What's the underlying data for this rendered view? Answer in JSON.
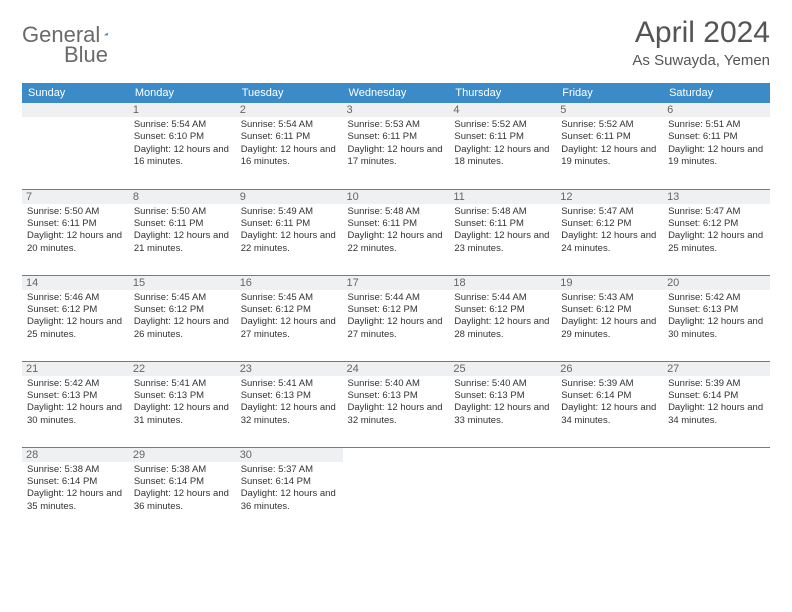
{
  "logo": {
    "text1": "General",
    "text2": "Blue",
    "shape_color": "#2a7bbf"
  },
  "header": {
    "title": "April 2024",
    "subtitle": "As Suwayda, Yemen"
  },
  "colors": {
    "header_bg": "#3b8bc9",
    "header_text": "#ffffff",
    "daynum_bg": "#eef0f2",
    "cell_border": "#3b8bc9",
    "body_text": "#333333"
  },
  "weekdays": [
    "Sunday",
    "Monday",
    "Tuesday",
    "Wednesday",
    "Thursday",
    "Friday",
    "Saturday"
  ],
  "start_offset": 1,
  "days": [
    {
      "n": 1,
      "sr": "5:54 AM",
      "ss": "6:10 PM",
      "dl": "12 hours and 16 minutes."
    },
    {
      "n": 2,
      "sr": "5:54 AM",
      "ss": "6:11 PM",
      "dl": "12 hours and 16 minutes."
    },
    {
      "n": 3,
      "sr": "5:53 AM",
      "ss": "6:11 PM",
      "dl": "12 hours and 17 minutes."
    },
    {
      "n": 4,
      "sr": "5:52 AM",
      "ss": "6:11 PM",
      "dl": "12 hours and 18 minutes."
    },
    {
      "n": 5,
      "sr": "5:52 AM",
      "ss": "6:11 PM",
      "dl": "12 hours and 19 minutes."
    },
    {
      "n": 6,
      "sr": "5:51 AM",
      "ss": "6:11 PM",
      "dl": "12 hours and 19 minutes."
    },
    {
      "n": 7,
      "sr": "5:50 AM",
      "ss": "6:11 PM",
      "dl": "12 hours and 20 minutes."
    },
    {
      "n": 8,
      "sr": "5:50 AM",
      "ss": "6:11 PM",
      "dl": "12 hours and 21 minutes."
    },
    {
      "n": 9,
      "sr": "5:49 AM",
      "ss": "6:11 PM",
      "dl": "12 hours and 22 minutes."
    },
    {
      "n": 10,
      "sr": "5:48 AM",
      "ss": "6:11 PM",
      "dl": "12 hours and 22 minutes."
    },
    {
      "n": 11,
      "sr": "5:48 AM",
      "ss": "6:11 PM",
      "dl": "12 hours and 23 minutes."
    },
    {
      "n": 12,
      "sr": "5:47 AM",
      "ss": "6:12 PM",
      "dl": "12 hours and 24 minutes."
    },
    {
      "n": 13,
      "sr": "5:47 AM",
      "ss": "6:12 PM",
      "dl": "12 hours and 25 minutes."
    },
    {
      "n": 14,
      "sr": "5:46 AM",
      "ss": "6:12 PM",
      "dl": "12 hours and 25 minutes."
    },
    {
      "n": 15,
      "sr": "5:45 AM",
      "ss": "6:12 PM",
      "dl": "12 hours and 26 minutes."
    },
    {
      "n": 16,
      "sr": "5:45 AM",
      "ss": "6:12 PM",
      "dl": "12 hours and 27 minutes."
    },
    {
      "n": 17,
      "sr": "5:44 AM",
      "ss": "6:12 PM",
      "dl": "12 hours and 27 minutes."
    },
    {
      "n": 18,
      "sr": "5:44 AM",
      "ss": "6:12 PM",
      "dl": "12 hours and 28 minutes."
    },
    {
      "n": 19,
      "sr": "5:43 AM",
      "ss": "6:12 PM",
      "dl": "12 hours and 29 minutes."
    },
    {
      "n": 20,
      "sr": "5:42 AM",
      "ss": "6:13 PM",
      "dl": "12 hours and 30 minutes."
    },
    {
      "n": 21,
      "sr": "5:42 AM",
      "ss": "6:13 PM",
      "dl": "12 hours and 30 minutes."
    },
    {
      "n": 22,
      "sr": "5:41 AM",
      "ss": "6:13 PM",
      "dl": "12 hours and 31 minutes."
    },
    {
      "n": 23,
      "sr": "5:41 AM",
      "ss": "6:13 PM",
      "dl": "12 hours and 32 minutes."
    },
    {
      "n": 24,
      "sr": "5:40 AM",
      "ss": "6:13 PM",
      "dl": "12 hours and 32 minutes."
    },
    {
      "n": 25,
      "sr": "5:40 AM",
      "ss": "6:13 PM",
      "dl": "12 hours and 33 minutes."
    },
    {
      "n": 26,
      "sr": "5:39 AM",
      "ss": "6:14 PM",
      "dl": "12 hours and 34 minutes."
    },
    {
      "n": 27,
      "sr": "5:39 AM",
      "ss": "6:14 PM",
      "dl": "12 hours and 34 minutes."
    },
    {
      "n": 28,
      "sr": "5:38 AM",
      "ss": "6:14 PM",
      "dl": "12 hours and 35 minutes."
    },
    {
      "n": 29,
      "sr": "5:38 AM",
      "ss": "6:14 PM",
      "dl": "12 hours and 36 minutes."
    },
    {
      "n": 30,
      "sr": "5:37 AM",
      "ss": "6:14 PM",
      "dl": "12 hours and 36 minutes."
    }
  ],
  "labels": {
    "sunrise": "Sunrise:",
    "sunset": "Sunset:",
    "daylight": "Daylight:"
  }
}
